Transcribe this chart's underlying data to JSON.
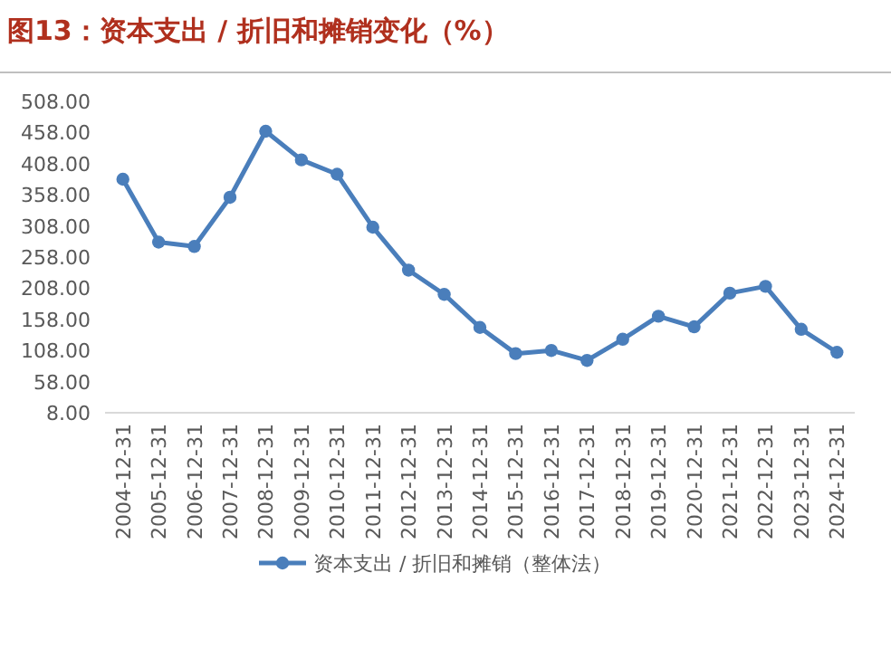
{
  "chart_data": {
    "type": "line",
    "title": "图13：资本支出 / 折旧和摊销变化（%）",
    "categories": [
      "2004-12-31",
      "2005-12-31",
      "2006-12-31",
      "2007-12-31",
      "2008-12-31",
      "2009-12-31",
      "2010-12-31",
      "2011-12-31",
      "2012-12-31",
      "2013-12-31",
      "2014-12-31",
      "2015-12-31",
      "2016-12-31",
      "2017-12-31",
      "2018-12-31",
      "2019-12-31",
      "2020-12-31",
      "2021-12-31",
      "2022-12-31",
      "2023-12-31",
      "2024-12-31"
    ],
    "series": [
      {
        "name": "资本支出 / 折旧和摊销（整体法）",
        "color": "#4a7ebb",
        "values": [
          383,
          282,
          275,
          354,
          460,
          414,
          391,
          306,
          237,
          198,
          145,
          103,
          108,
          92,
          126,
          163,
          146,
          200,
          211,
          142,
          105
        ]
      }
    ],
    "ylim": [
      8,
      508
    ],
    "yticks": [
      {
        "value": 8,
        "label": "8.00"
      },
      {
        "value": 58,
        "label": "58.00"
      },
      {
        "value": 108,
        "label": "108.00"
      },
      {
        "value": 158,
        "label": "158.00"
      },
      {
        "value": 208,
        "label": "208.00"
      },
      {
        "value": 258,
        "label": "258.00"
      },
      {
        "value": 308,
        "label": "308.00"
      },
      {
        "value": 358,
        "label": "358.00"
      },
      {
        "value": 408,
        "label": "408.00"
      },
      {
        "value": 458,
        "label": "458.00"
      },
      {
        "value": 508,
        "label": "508.00"
      }
    ],
    "legend": "bottom",
    "marker": "circle"
  }
}
